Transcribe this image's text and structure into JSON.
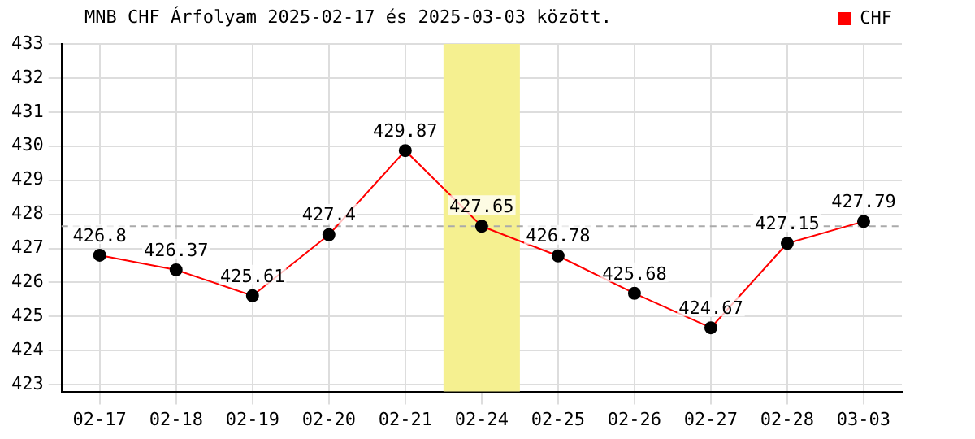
{
  "chart_data": {
    "type": "line",
    "title": "MNB CHF Árfolyam 2025-02-17 és 2025-03-03 között.",
    "categories": [
      "02-17",
      "02-18",
      "02-19",
      "02-20",
      "02-21",
      "02-24",
      "02-25",
      "02-26",
      "02-27",
      "02-28",
      "03-03"
    ],
    "series": [
      {
        "name": "CHF",
        "color": "#ff0000",
        "values": [
          426.8,
          426.37,
          425.61,
          427.4,
          429.87,
          427.65,
          426.78,
          425.68,
          424.67,
          427.15,
          427.79
        ]
      }
    ],
    "ylim": [
      422.8,
      433
    ],
    "yticks": [
      423,
      424,
      425,
      426,
      427,
      428,
      429,
      430,
      431,
      432,
      433
    ],
    "grid": true,
    "legend": "top right",
    "marker": "circle",
    "line_style": "solid",
    "data_labels": true,
    "ref_lines": [
      {
        "axis": "y",
        "value": 427.65,
        "color": "#aaaaaa",
        "line_style": "dashed"
      }
    ],
    "bands": [
      {
        "axis": "x",
        "from": "02-24",
        "to": "02-24",
        "color": "#f5f090"
      }
    ]
  }
}
